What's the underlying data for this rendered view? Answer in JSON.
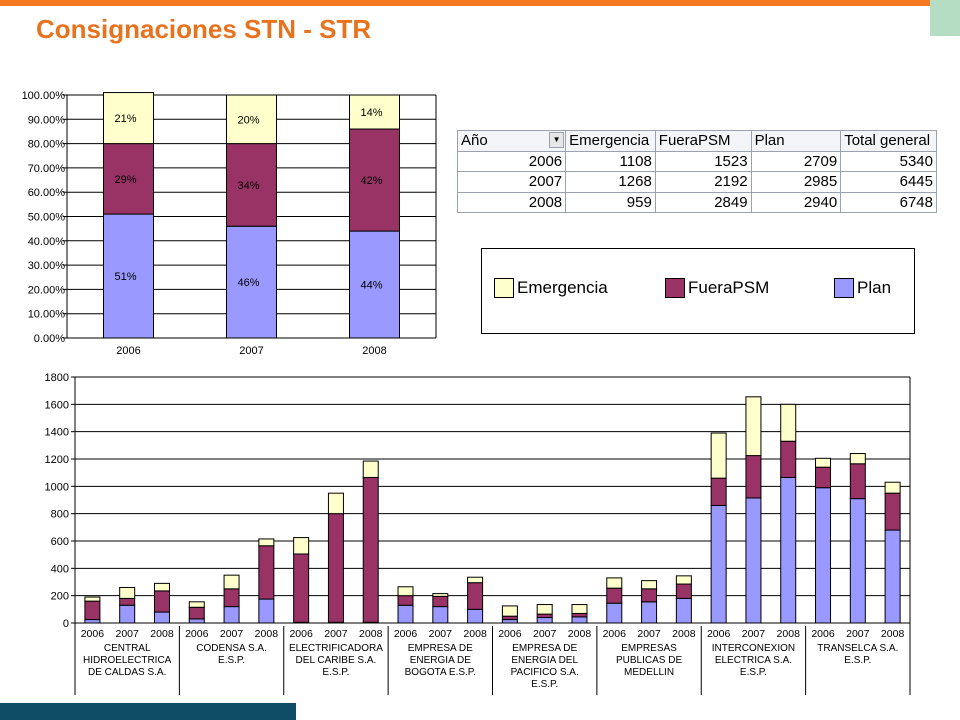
{
  "slide": {
    "title": "Consignaciones STN - STR",
    "colors": {
      "orange": "#F47920",
      "teal": "#0E4D64",
      "mint": "#B5DDC4"
    }
  },
  "chart_data": [
    {
      "type": "bar",
      "stacked": true,
      "percent": true,
      "categories": [
        "2006",
        "2007",
        "2008"
      ],
      "series": [
        {
          "name": "Plan",
          "values": [
            51,
            46,
            44
          ],
          "labels": [
            "51%",
            "46%",
            "44%"
          ],
          "color": "#9999FF"
        },
        {
          "name": "FueraPSM",
          "values": [
            29,
            34,
            42
          ],
          "labels": [
            "29%",
            "34%",
            "42%"
          ],
          "color": "#993366"
        },
        {
          "name": "Emergencia",
          "values": [
            21,
            20,
            14
          ],
          "labels": [
            "21%",
            "20%",
            "14%"
          ],
          "color": "#FFFFCC"
        }
      ],
      "yticks": [
        "0.00%",
        "10.00%",
        "20.00%",
        "30.00%",
        "40.00%",
        "50.00%",
        "60.00%",
        "70.00%",
        "80.00%",
        "90.00%",
        "100.00%"
      ],
      "ylim": [
        0,
        100
      ],
      "grid": true
    },
    {
      "type": "table",
      "columns": [
        "Año",
        "Emergencia",
        "FueraPSM",
        "Plan",
        "Total general"
      ],
      "rows": [
        [
          "2006",
          "1108",
          "1523",
          "2709",
          "5340"
        ],
        [
          "2007",
          "1268",
          "2192",
          "2985",
          "6445"
        ],
        [
          "2008",
          "959",
          "2849",
          "2940",
          "6748"
        ]
      ]
    },
    {
      "type": "bar",
      "stacked": true,
      "ylim": [
        0,
        1800
      ],
      "yticks": [
        "0",
        "200",
        "400",
        "600",
        "800",
        "1000",
        "1200",
        "1400",
        "1600",
        "1800"
      ],
      "grid": true,
      "groups": [
        {
          "name": "CENTRAL HIDROELECTRICA DE CALDAS S.A.",
          "lines": [
            "CENTRAL",
            "HIDROELECTRICA",
            "DE CALDAS S.A."
          ]
        },
        {
          "name": "CODENSA S.A. E.S.P.",
          "lines": [
            "CODENSA S.A.",
            "E.S.P."
          ]
        },
        {
          "name": "ELECTRIFICADORA DEL CARIBE S.A. E.S.P.",
          "lines": [
            "ELECTRIFICADORA",
            "DEL CARIBE S.A.",
            "E.S.P."
          ]
        },
        {
          "name": "EMPRESA DE ENERGIA DE BOGOTA E.S.P.",
          "lines": [
            "EMPRESA DE",
            "ENERGIA DE",
            "BOGOTA E.S.P."
          ]
        },
        {
          "name": "EMPRESA DE ENERGIA DEL PACIFICO S.A. E.S.P.",
          "lines": [
            "EMPRESA DE",
            "ENERGIA DEL",
            "PACIFICO S.A.",
            "E.S.P."
          ]
        },
        {
          "name": "EMPRESAS PUBLICAS DE MEDELLIN",
          "lines": [
            "EMPRESAS",
            "PUBLICAS DE",
            "MEDELLIN"
          ]
        },
        {
          "name": "INTERCONEXION ELECTRICA S.A. E.S.P.",
          "lines": [
            "INTERCONEXION",
            "ELECTRICA S.A.",
            "E.S.P."
          ]
        },
        {
          "name": "TRANSELCA S.A. E.S.P.",
          "lines": [
            "TRANSELCA S.A.",
            "E.S.P."
          ]
        }
      ],
      "years": [
        "2006",
        "2007",
        "2008"
      ],
      "series": [
        {
          "name": "Plan",
          "color": "#9999FF",
          "values": [
            [
              25,
              130,
              80
            ],
            [
              30,
              120,
              175
            ],
            [
              5,
              5,
              5
            ],
            [
              130,
              120,
              100
            ],
            [
              25,
              40,
              45
            ],
            [
              145,
              155,
              180
            ],
            [
              860,
              915,
              1065
            ],
            [
              990,
              910,
              680
            ]
          ]
        },
        {
          "name": "FueraPSM",
          "color": "#993366",
          "values": [
            [
              135,
              50,
              155
            ],
            [
              85,
              130,
              390
            ],
            [
              500,
              795,
              1060
            ],
            [
              70,
              75,
              195
            ],
            [
              25,
              25,
              25
            ],
            [
              110,
              95,
              105
            ],
            [
              200,
              310,
              265
            ],
            [
              150,
              255,
              270
            ]
          ]
        },
        {
          "name": "Emergencia",
          "color": "#FFFFCC",
          "values": [
            [
              30,
              80,
              55
            ],
            [
              40,
              100,
              50
            ],
            [
              120,
              150,
              120
            ],
            [
              65,
              20,
              40
            ],
            [
              75,
              70,
              65
            ],
            [
              75,
              60,
              60
            ],
            [
              330,
              430,
              270
            ],
            [
              65,
              75,
              80
            ]
          ]
        }
      ]
    }
  ],
  "legend": [
    {
      "label": "Emergencia",
      "color": "#FFFFCC"
    },
    {
      "label": "FueraPSM",
      "color": "#993366"
    },
    {
      "label": "Plan",
      "color": "#9999FF"
    }
  ]
}
